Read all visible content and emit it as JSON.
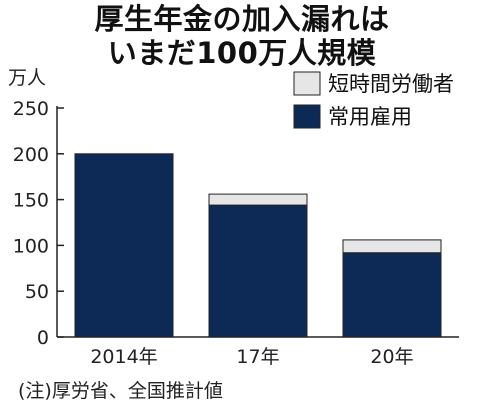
{
  "title_line1": "厚生年金の加入漏れは",
  "title_line2": "いまだ100万人規模",
  "note": "(注)厚労省、全国推計値",
  "colors": {
    "regular": "#0d2a57",
    "part_time": "#e6e6e6",
    "stroke": "#222222"
  },
  "chart_data": {
    "type": "bar",
    "stacked": true,
    "title": "厚生年金の加入漏れは いまだ100万人規模",
    "ylabel": "万人",
    "ylim": [
      0,
      250
    ],
    "yticks": [
      0,
      50,
      100,
      150,
      200,
      250
    ],
    "categories": [
      "2014年",
      "17年",
      "20年"
    ],
    "series": [
      {
        "name": "常用雇用",
        "values": [
          200,
          144,
          92
        ],
        "color": "#0d2a57"
      },
      {
        "name": "短時間労働者",
        "values": [
          0,
          12,
          14
        ],
        "color": "#e6e6e6"
      }
    ],
    "legend": {
      "position": "top-right",
      "order": [
        "短時間労働者",
        "常用雇用"
      ]
    },
    "grid": false
  }
}
